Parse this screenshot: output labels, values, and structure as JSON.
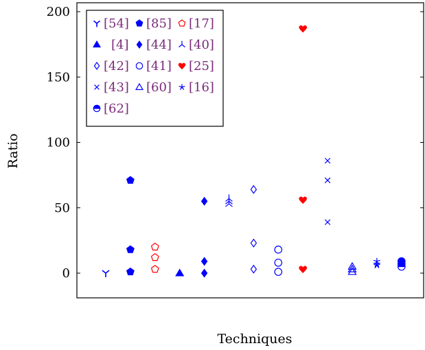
{
  "chart_data": {
    "type": "scatter",
    "ylabel": "Ratio",
    "xlabel": "Techniques",
    "ylim": [
      -18,
      205
    ],
    "yticks": [
      0,
      50,
      100,
      150,
      200
    ],
    "grid": false,
    "legend_position": "top-left",
    "colors": {
      "blue": "#0000ff",
      "red": "#ff0000",
      "legend_text": "#7a2a7a"
    },
    "series": [
      {
        "name": "[54]",
        "marker": "tri-down-open",
        "color": "#0000ff",
        "x": 1,
        "values": [
          0
        ]
      },
      {
        "name": "[85]",
        "marker": "pentagon-filled",
        "color": "#0000ff",
        "x": 2,
        "values": [
          71,
          18,
          1
        ]
      },
      {
        "name": "[17]",
        "marker": "pentagon-open",
        "color": "#ff0000",
        "x": 3,
        "values": [
          20,
          12,
          3
        ]
      },
      {
        "name": "[4]",
        "marker": "triangle-filled",
        "color": "#0000ff",
        "x": 4,
        "values": [
          0
        ]
      },
      {
        "name": "[44]",
        "marker": "diamond-filled",
        "color": "#0000ff",
        "x": 5,
        "values": [
          55,
          9,
          0
        ]
      },
      {
        "name": "[40]",
        "marker": "tri-up-open",
        "color": "#0000ff",
        "x": 6,
        "values": [
          57,
          55,
          53
        ]
      },
      {
        "name": "[42]",
        "marker": "diamond-open",
        "color": "#0000ff",
        "x": 7,
        "values": [
          64,
          23,
          3
        ]
      },
      {
        "name": "[41]",
        "marker": "circle-open",
        "color": "#0000ff",
        "x": 8,
        "values": [
          18,
          8,
          1
        ]
      },
      {
        "name": "[25]",
        "marker": "heart-filled",
        "color": "#ff0000",
        "x": 9,
        "values": [
          187,
          56,
          3
        ]
      },
      {
        "name": "[43]",
        "marker": "cross",
        "color": "#0000ff",
        "x": 10,
        "values": [
          86,
          71,
          39
        ]
      },
      {
        "name": "[60]",
        "marker": "triangle-open",
        "color": "#0000ff",
        "x": 11,
        "values": [
          5,
          3,
          1
        ]
      },
      {
        "name": "[16]",
        "marker": "star",
        "color": "#0000ff",
        "x": 12,
        "values": [
          9,
          7,
          6
        ]
      },
      {
        "name": "[62]",
        "marker": "half-circle",
        "color": "#0000ff",
        "x": 13,
        "values": [
          9,
          7,
          5
        ]
      }
    ]
  }
}
